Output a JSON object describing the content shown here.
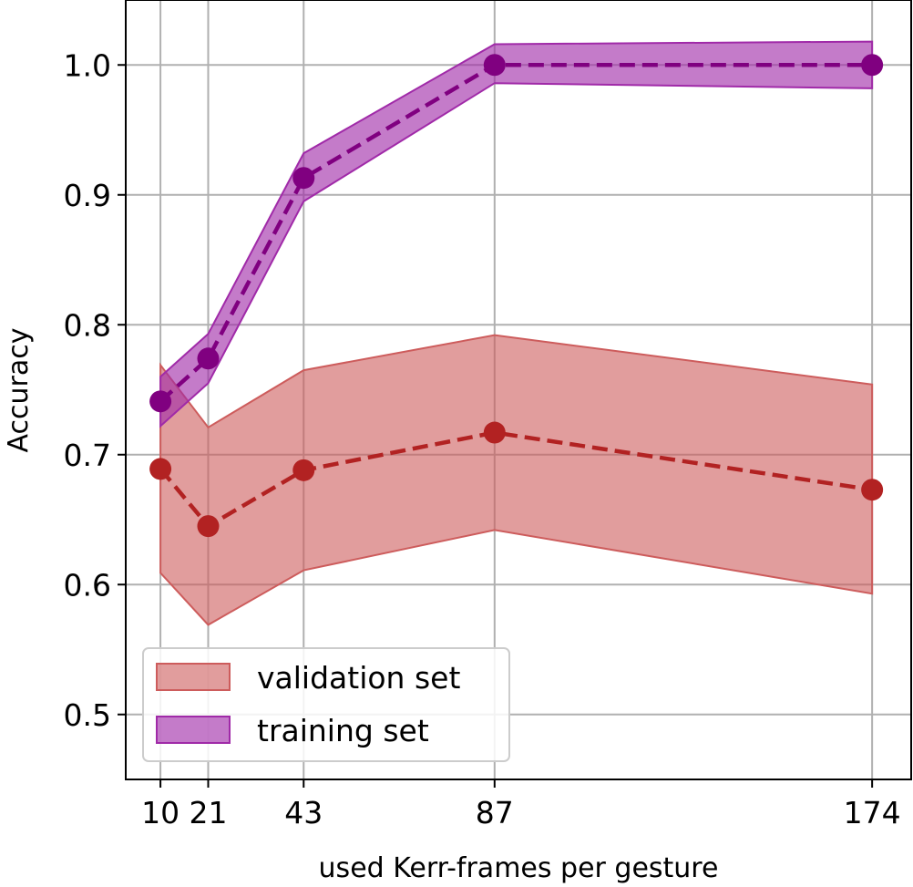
{
  "chart_data": {
    "type": "line",
    "xlabel": "used Kerr-frames per gesture",
    "ylabel": "Accuracy",
    "x": [
      10,
      21,
      43,
      87,
      174
    ],
    "xticks": [
      "10",
      "21",
      "43",
      "87",
      "174"
    ],
    "yticks": [
      "0.5",
      "0.6",
      "0.7",
      "0.8",
      "0.9",
      "1.0"
    ],
    "xlim": [
      2,
      183
    ],
    "ylim": [
      0.45,
      1.05
    ],
    "grid": true,
    "legend_position": "lower-left",
    "series": [
      {
        "name": "validation set",
        "color": "#b22222",
        "fill_color": "#cd5c5c",
        "values": [
          0.689,
          0.645,
          0.688,
          0.717,
          0.673
        ],
        "lower": [
          0.609,
          0.569,
          0.611,
          0.642,
          0.593
        ],
        "upper": [
          0.769,
          0.721,
          0.765,
          0.792,
          0.754
        ]
      },
      {
        "name": "training set",
        "color": "#800080",
        "fill_color": "#a02aa8",
        "values": [
          0.741,
          0.774,
          0.913,
          1.0,
          1.0
        ],
        "lower": [
          0.722,
          0.755,
          0.895,
          0.986,
          0.982
        ],
        "upper": [
          0.76,
          0.793,
          0.932,
          1.016,
          1.018
        ]
      }
    ]
  }
}
